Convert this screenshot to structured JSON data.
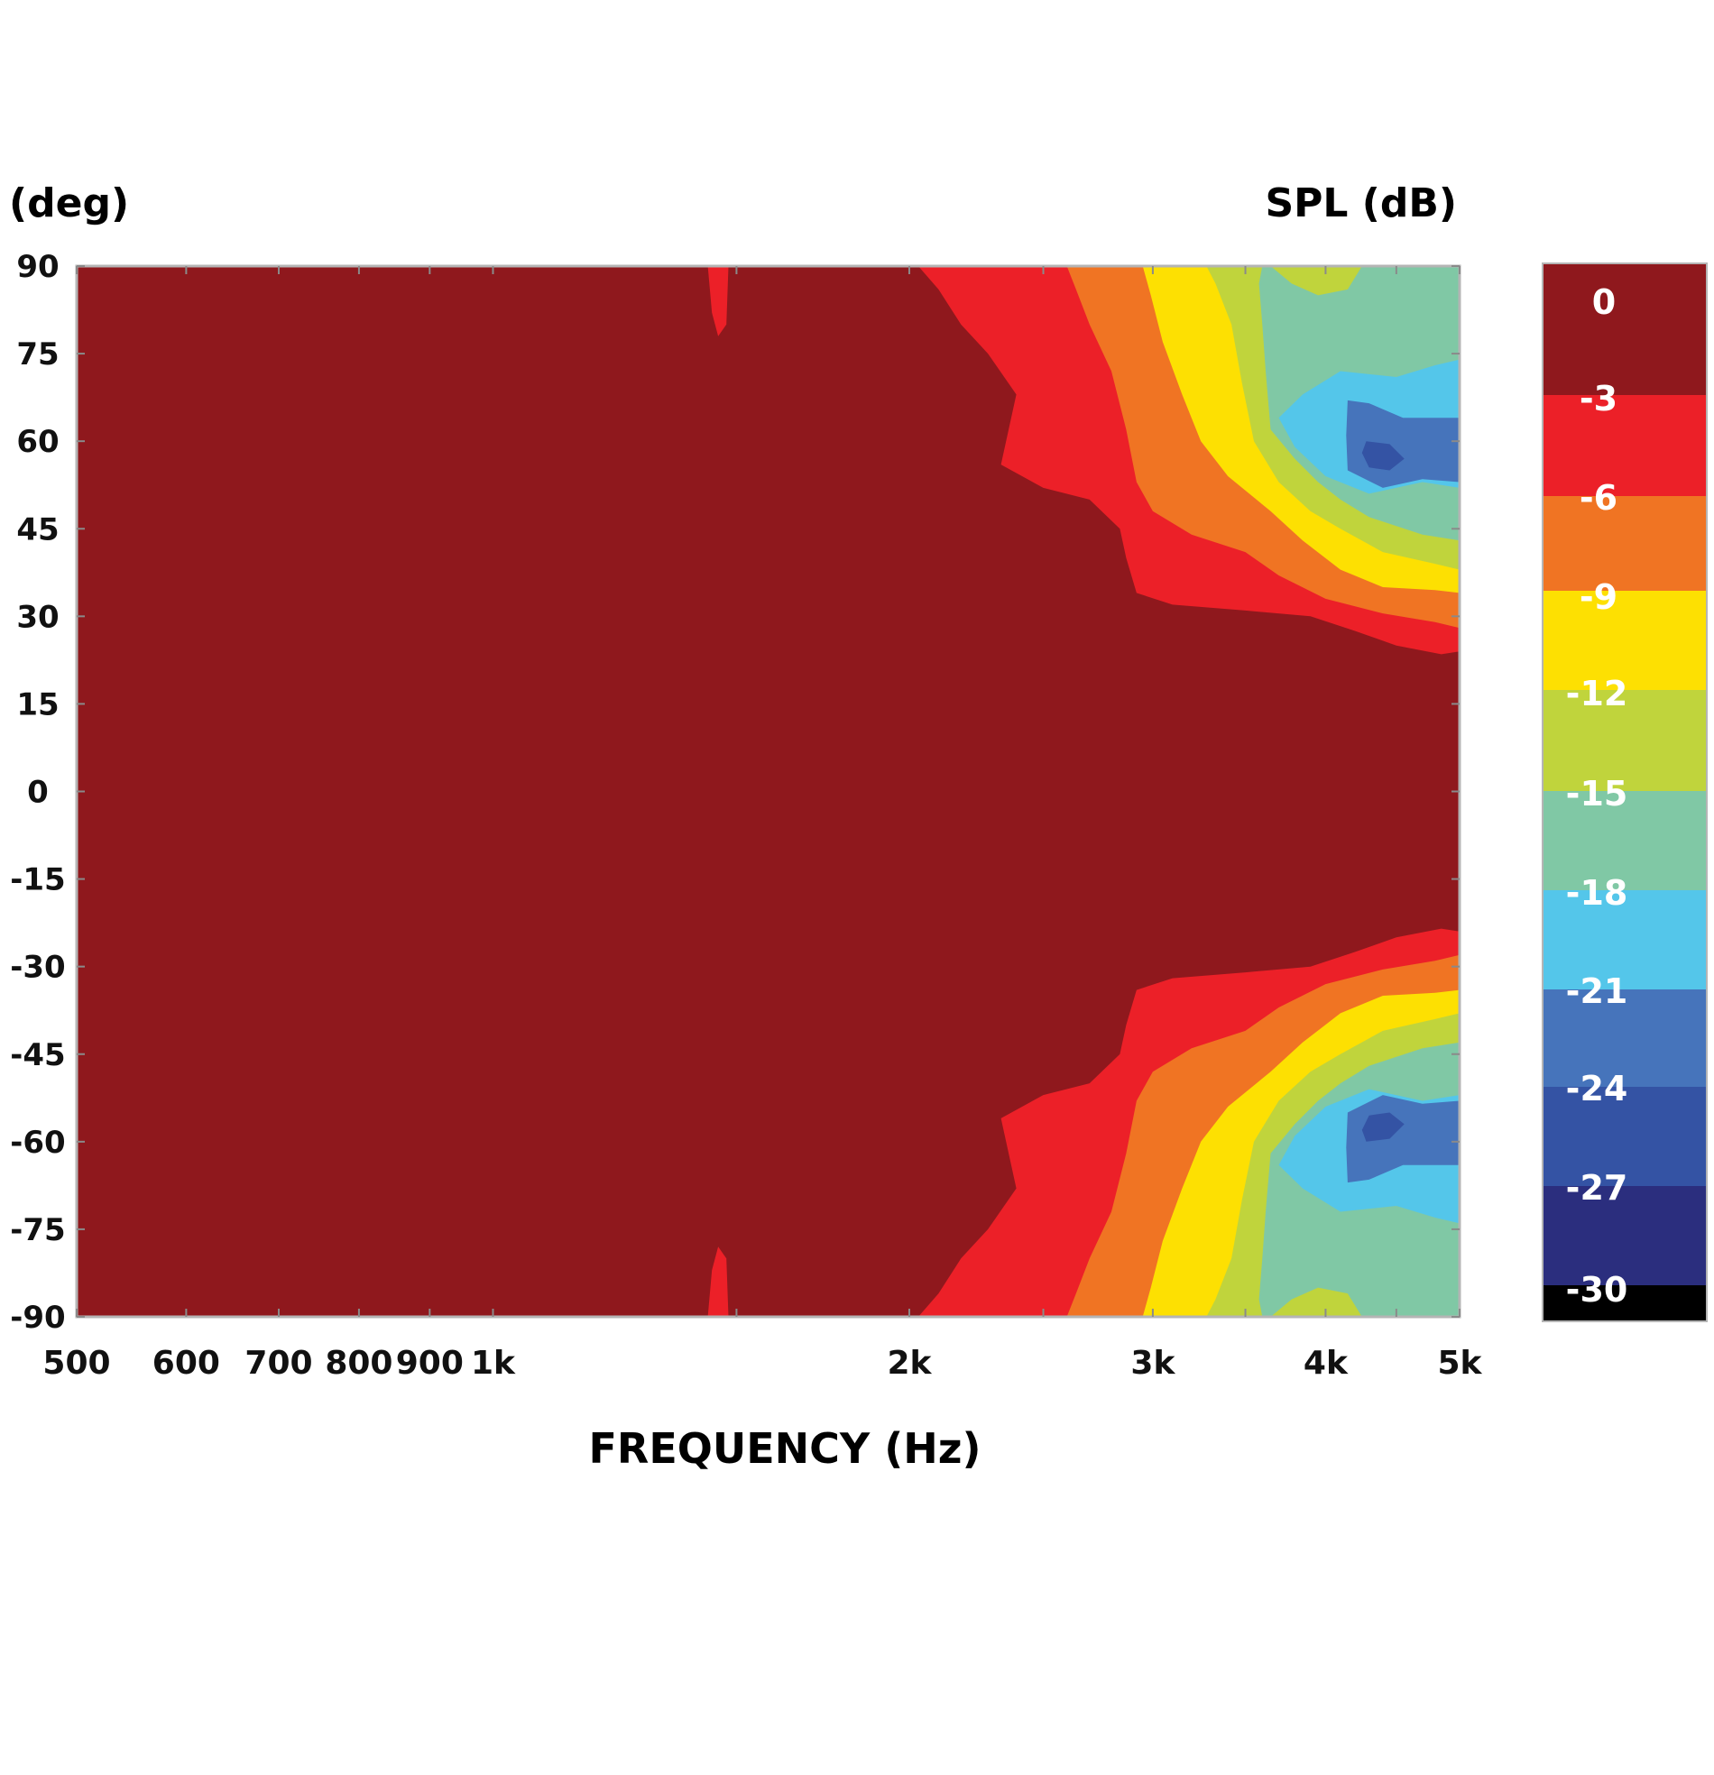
{
  "chart_data": {
    "type": "heatmap",
    "title": "",
    "xlabel": "FREQUENCY (Hz)",
    "ylabel": "(deg)",
    "colorbar_label": "SPL (dB)",
    "x_scale": "log",
    "xlim": [
      500,
      5000
    ],
    "ylim": [
      -90,
      90
    ],
    "x_ticks": [
      {
        "value": 500,
        "label": "500"
      },
      {
        "value": 600,
        "label": "600"
      },
      {
        "value": 700,
        "label": "700"
      },
      {
        "value": 800,
        "label": "800"
      },
      {
        "value": 900,
        "label": "900"
      },
      {
        "value": 1000,
        "label": "1k"
      },
      {
        "value": 2000,
        "label": "2k"
      },
      {
        "value": 3000,
        "label": "3k"
      },
      {
        "value": 4000,
        "label": "4k"
      },
      {
        "value": 5000,
        "label": "5k"
      }
    ],
    "y_ticks": [
      {
        "value": 90,
        "label": "90"
      },
      {
        "value": 75,
        "label": "75"
      },
      {
        "value": 60,
        "label": "60"
      },
      {
        "value": 45,
        "label": "45"
      },
      {
        "value": 30,
        "label": "30"
      },
      {
        "value": 15,
        "label": "15"
      },
      {
        "value": 0,
        "label": "0"
      },
      {
        "value": -15,
        "label": "-15"
      },
      {
        "value": -30,
        "label": "-30"
      },
      {
        "value": -45,
        "label": "-45"
      },
      {
        "value": -60,
        "label": "-60"
      },
      {
        "value": -75,
        "label": "-75"
      },
      {
        "value": -90,
        "label": "-90"
      }
    ],
    "colorbar": [
      {
        "label": "0",
        "color": "#8f181d"
      },
      {
        "label": "-3",
        "color": "#ec2028"
      },
      {
        "label": "-6",
        "color": "#f07423"
      },
      {
        "label": "-9",
        "color": "#fde002"
      },
      {
        "label": "-12",
        "color": "#c0d43c"
      },
      {
        "label": "-15",
        "color": "#80c8a5"
      },
      {
        "label": "-18",
        "color": "#54c6ea"
      },
      {
        "label": "-21",
        "color": "#4674bb"
      },
      {
        "label": "-24",
        "color": "#3453a4"
      },
      {
        "label": "-27",
        "color": "#2b2e7e"
      },
      {
        "label": "-30",
        "color": "#000000"
      }
    ],
    "contours": [
      {
        "level": "-3",
        "color": "#ec2028",
        "points": [
          [
            1430,
            90
          ],
          [
            1480,
            90
          ],
          [
            1475,
            80
          ],
          [
            1455,
            78
          ],
          [
            1440,
            82
          ]
        ]
      },
      {
        "level": "-3",
        "color": "#ec2028",
        "points": [
          [
            1430,
            -90
          ],
          [
            1480,
            -90
          ],
          [
            1475,
            -80
          ],
          [
            1455,
            -78
          ],
          [
            1440,
            -82
          ]
        ]
      },
      {
        "level": "-3",
        "color": "#ec2028",
        "points": [
          [
            2030,
            90
          ],
          [
            5000,
            90
          ],
          [
            5000,
            24
          ],
          [
            4850,
            23.5
          ],
          [
            4500,
            25
          ],
          [
            4200,
            27.5
          ],
          [
            3900,
            30
          ],
          [
            3500,
            31
          ],
          [
            3100,
            32
          ],
          [
            2920,
            34
          ],
          [
            2870,
            40
          ],
          [
            2840,
            45
          ],
          [
            2700,
            50
          ],
          [
            2500,
            52
          ],
          [
            2330,
            56
          ],
          [
            2390,
            68
          ],
          [
            2280,
            75
          ],
          [
            2180,
            80
          ],
          [
            2100,
            86
          ]
        ]
      },
      {
        "level": "-3",
        "color": "#ec2028",
        "points": [
          [
            2030,
            -90
          ],
          [
            5000,
            -90
          ],
          [
            5000,
            -24
          ],
          [
            4850,
            -23.5
          ],
          [
            4500,
            -25
          ],
          [
            4200,
            -27.5
          ],
          [
            3900,
            -30
          ],
          [
            3500,
            -31
          ],
          [
            3100,
            -32
          ],
          [
            2920,
            -34
          ],
          [
            2870,
            -40
          ],
          [
            2840,
            -45
          ],
          [
            2700,
            -50
          ],
          [
            2500,
            -52
          ],
          [
            2330,
            -56
          ],
          [
            2390,
            -68
          ],
          [
            2280,
            -75
          ],
          [
            2180,
            -80
          ],
          [
            2100,
            -86
          ]
        ]
      },
      {
        "level": "-6",
        "color": "#f07423",
        "points": [
          [
            2600,
            90
          ],
          [
            5000,
            90
          ],
          [
            5000,
            28
          ],
          [
            4800,
            29
          ],
          [
            4400,
            30.5
          ],
          [
            4000,
            33
          ],
          [
            3700,
            37
          ],
          [
            3500,
            41
          ],
          [
            3200,
            44
          ],
          [
            3000,
            48
          ],
          [
            2920,
            53
          ],
          [
            2870,
            62
          ],
          [
            2800,
            72
          ],
          [
            2700,
            80
          ],
          [
            2640,
            86
          ]
        ]
      },
      {
        "level": "-6",
        "color": "#f07423",
        "points": [
          [
            2600,
            -90
          ],
          [
            5000,
            -90
          ],
          [
            5000,
            -28
          ],
          [
            4800,
            -29
          ],
          [
            4400,
            -30.5
          ],
          [
            4000,
            -33
          ],
          [
            3700,
            -37
          ],
          [
            3500,
            -41
          ],
          [
            3200,
            -44
          ],
          [
            3000,
            -48
          ],
          [
            2920,
            -53
          ],
          [
            2870,
            -62
          ],
          [
            2800,
            -72
          ],
          [
            2700,
            -80
          ],
          [
            2640,
            -86
          ]
        ]
      },
      {
        "level": "-9",
        "color": "#fde002",
        "points": [
          [
            2950,
            90
          ],
          [
            5000,
            90
          ],
          [
            5000,
            34
          ],
          [
            4800,
            34.5
          ],
          [
            4400,
            35
          ],
          [
            4100,
            38
          ],
          [
            3850,
            43
          ],
          [
            3650,
            48
          ],
          [
            3400,
            54
          ],
          [
            3250,
            60
          ],
          [
            3150,
            68
          ],
          [
            3050,
            77
          ],
          [
            2990,
            85
          ]
        ]
      },
      {
        "level": "-9",
        "color": "#fde002",
        "points": [
          [
            2950,
            -90
          ],
          [
            5000,
            -90
          ],
          [
            5000,
            -34
          ],
          [
            4800,
            -34.5
          ],
          [
            4400,
            -35
          ],
          [
            4100,
            -38
          ],
          [
            3850,
            -43
          ],
          [
            3650,
            -48
          ],
          [
            3400,
            -54
          ],
          [
            3250,
            -60
          ],
          [
            3150,
            -68
          ],
          [
            3050,
            -77
          ],
          [
            2990,
            -85
          ]
        ]
      },
      {
        "level": "-12",
        "color": "#c0d43c",
        "points": [
          [
            3280,
            90
          ],
          [
            5000,
            90
          ],
          [
            5000,
            38
          ],
          [
            4800,
            39
          ],
          [
            4400,
            41
          ],
          [
            4100,
            45
          ],
          [
            3900,
            48
          ],
          [
            3700,
            53
          ],
          [
            3550,
            60
          ],
          [
            3480,
            70
          ],
          [
            3420,
            80
          ],
          [
            3330,
            87
          ]
        ]
      },
      {
        "level": "-12",
        "color": "#c0d43c",
        "points": [
          [
            3280,
            -90
          ],
          [
            5000,
            -90
          ],
          [
            5000,
            -38
          ],
          [
            4800,
            -39
          ],
          [
            4400,
            -41
          ],
          [
            4100,
            -45
          ],
          [
            3900,
            -48
          ],
          [
            3700,
            -53
          ],
          [
            3550,
            -60
          ],
          [
            3480,
            -70
          ],
          [
            3420,
            -80
          ],
          [
            3330,
            -87
          ]
        ]
      },
      {
        "level": "-15",
        "color": "#80c8a5",
        "points": [
          [
            3600,
            90
          ],
          [
            5000,
            90
          ],
          [
            5000,
            43
          ],
          [
            4700,
            44
          ],
          [
            4300,
            47
          ],
          [
            4100,
            50
          ],
          [
            3950,
            53
          ],
          [
            3800,
            57
          ],
          [
            3650,
            62
          ],
          [
            3620,
            72
          ],
          [
            3600,
            80
          ],
          [
            3580,
            87
          ]
        ]
      },
      {
        "level": "-15",
        "color": "#80c8a5",
        "points": [
          [
            3600,
            -90
          ],
          [
            5000,
            -90
          ],
          [
            5000,
            -43
          ],
          [
            4700,
            -44
          ],
          [
            4300,
            -47
          ],
          [
            4100,
            -50
          ],
          [
            3950,
            -53
          ],
          [
            3800,
            -57
          ],
          [
            3650,
            -62
          ],
          [
            3620,
            -72
          ],
          [
            3600,
            -80
          ],
          [
            3580,
            -87
          ]
        ]
      },
      {
        "level": "-12",
        "color": "#c0d43c",
        "points": [
          [
            3650,
            90
          ],
          [
            4250,
            90
          ],
          [
            4150,
            86
          ],
          [
            3950,
            85
          ],
          [
            3780,
            87
          ]
        ]
      },
      {
        "level": "-12",
        "color": "#c0d43c",
        "points": [
          [
            3650,
            -90
          ],
          [
            4250,
            -90
          ],
          [
            4150,
            -86
          ],
          [
            3950,
            -85
          ],
          [
            3780,
            -87
          ]
        ]
      },
      {
        "level": "-18",
        "color": "#54c6ea",
        "points": [
          [
            3850,
            68
          ],
          [
            4100,
            72
          ],
          [
            4500,
            71
          ],
          [
            4800,
            73
          ],
          [
            5000,
            74
          ],
          [
            5000,
            52
          ],
          [
            4700,
            53
          ],
          [
            4300,
            51
          ],
          [
            4000,
            54
          ],
          [
            3800,
            59
          ],
          [
            3700,
            64
          ]
        ]
      },
      {
        "level": "-18",
        "color": "#54c6ea",
        "points": [
          [
            3850,
            -68
          ],
          [
            4100,
            -72
          ],
          [
            4500,
            -71
          ],
          [
            4800,
            -73
          ],
          [
            5000,
            -74
          ],
          [
            5000,
            -52
          ],
          [
            4700,
            -53
          ],
          [
            4300,
            -51
          ],
          [
            4000,
            -54
          ],
          [
            3800,
            -59
          ],
          [
            3700,
            -64
          ]
        ]
      },
      {
        "level": "-21",
        "color": "#4674bb",
        "points": [
          [
            4150,
            67
          ],
          [
            4300,
            66.5
          ],
          [
            4550,
            64
          ],
          [
            5000,
            64
          ],
          [
            5000,
            53
          ],
          [
            4700,
            53.5
          ],
          [
            4400,
            52
          ],
          [
            4150,
            55
          ],
          [
            4140,
            61
          ]
        ]
      },
      {
        "level": "-21",
        "color": "#4674bb",
        "points": [
          [
            4150,
            -67
          ],
          [
            4300,
            -66.5
          ],
          [
            4550,
            -64
          ],
          [
            5000,
            -64
          ],
          [
            5000,
            -53
          ],
          [
            4700,
            -53.5
          ],
          [
            4400,
            -52
          ],
          [
            4150,
            -55
          ],
          [
            4140,
            -61
          ]
        ]
      },
      {
        "level": "-24",
        "color": "#3453a4",
        "points": [
          [
            4280,
            60
          ],
          [
            4450,
            59.5
          ],
          [
            4560,
            57
          ],
          [
            4450,
            55
          ],
          [
            4300,
            55.5
          ],
          [
            4250,
            58
          ]
        ]
      },
      {
        "level": "-24",
        "color": "#3453a4",
        "points": [
          [
            4280,
            -60
          ],
          [
            4450,
            -59.5
          ],
          [
            4560,
            -57
          ],
          [
            4450,
            -55
          ],
          [
            4300,
            -55.5
          ],
          [
            4250,
            -58
          ]
        ]
      }
    ]
  }
}
